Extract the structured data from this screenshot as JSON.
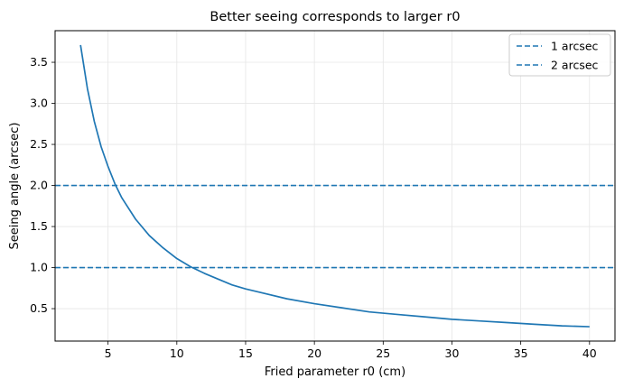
{
  "chart_data": {
    "type": "line",
    "title": "Better seeing corresponds to larger r0",
    "xlabel": "Fried parameter r0 (cm)",
    "ylabel": "Seeing angle (arcsec)",
    "xlim": [
      1.15,
      41.85
    ],
    "ylim": [
      0.105,
      3.885
    ],
    "xticks": [
      5,
      10,
      15,
      20,
      25,
      30,
      35,
      40
    ],
    "yticks": [
      0.5,
      1.0,
      1.5,
      2.0,
      2.5,
      3.0,
      3.5
    ],
    "grid": true,
    "legend_position": "top-right",
    "colors": {
      "curve": "#1f77b4",
      "hline_1": "#1f77b4",
      "hline_2": "#1f77b4"
    },
    "series": [
      {
        "style": "solid",
        "x": [
          3,
          3.5,
          4,
          4.5,
          5,
          5.5,
          6,
          7,
          8,
          9,
          10,
          11,
          12,
          13,
          14,
          15,
          16,
          18,
          20,
          22,
          24,
          26,
          28,
          30,
          32,
          34,
          36,
          38,
          40
        ],
        "y": [
          3.71,
          3.18,
          2.78,
          2.47,
          2.23,
          2.02,
          1.85,
          1.59,
          1.39,
          1.24,
          1.11,
          1.01,
          0.93,
          0.86,
          0.79,
          0.74,
          0.7,
          0.62,
          0.56,
          0.51,
          0.46,
          0.43,
          0.4,
          0.37,
          0.35,
          0.33,
          0.31,
          0.29,
          0.28
        ]
      }
    ],
    "hlines": [
      {
        "name": "1 arcsec",
        "y": 1.0,
        "style": "dashed"
      },
      {
        "name": "2 arcsec",
        "y": 2.0,
        "style": "dashed"
      }
    ]
  }
}
